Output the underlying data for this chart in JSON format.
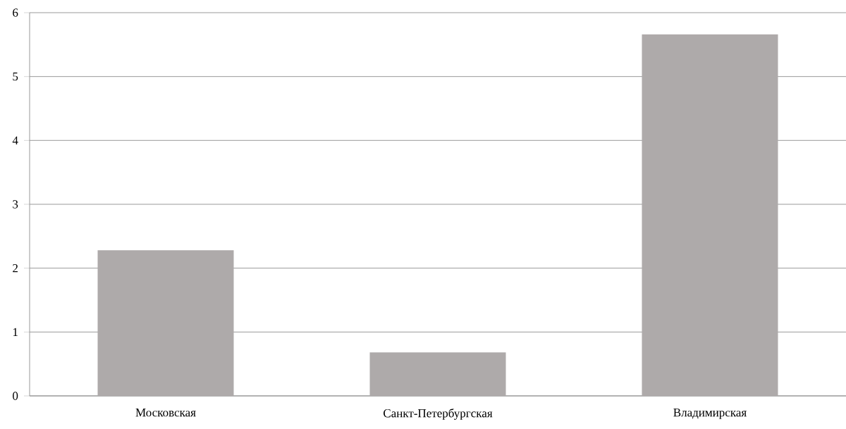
{
  "chart_data": {
    "type": "bar",
    "categories": [
      "Московская",
      "Санкт-Петербургская",
      "Владимирская"
    ],
    "values": [
      2.28,
      0.68,
      5.66
    ],
    "color": "#aeaaaa",
    "ylim": [
      0,
      6
    ],
    "yticks": [
      0,
      1,
      2,
      3,
      4,
      5,
      6
    ],
    "grid": "y"
  }
}
